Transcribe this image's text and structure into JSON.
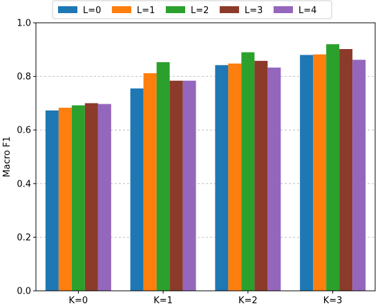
{
  "chart_data": {
    "type": "bar",
    "title": "",
    "xlabel": "",
    "ylabel": "Macro F1",
    "ylim": [
      0.0,
      1.0
    ],
    "yticks": [
      "0.0",
      "0.2",
      "0.4",
      "0.6",
      "0.8",
      "1.0"
    ],
    "grid": "y-dashed",
    "legend_position": "top-center",
    "categories": [
      "K=0",
      "K=1",
      "K=2",
      "K=3"
    ],
    "series": [
      {
        "name": "L=0",
        "color": "#1f77b4",
        "values": [
          0.673,
          0.755,
          0.842,
          0.88
        ]
      },
      {
        "name": "L=1",
        "color": "#ff7f0e",
        "values": [
          0.683,
          0.812,
          0.848,
          0.882
        ]
      },
      {
        "name": "L=2",
        "color": "#2ca02c",
        "values": [
          0.692,
          0.853,
          0.89,
          0.92
        ]
      },
      {
        "name": "L=3",
        "color": "#8c3b2a",
        "values": [
          0.7,
          0.784,
          0.858,
          0.902
        ]
      },
      {
        "name": "L=4",
        "color": "#9467bd",
        "values": [
          0.697,
          0.784,
          0.833,
          0.862
        ]
      }
    ]
  }
}
